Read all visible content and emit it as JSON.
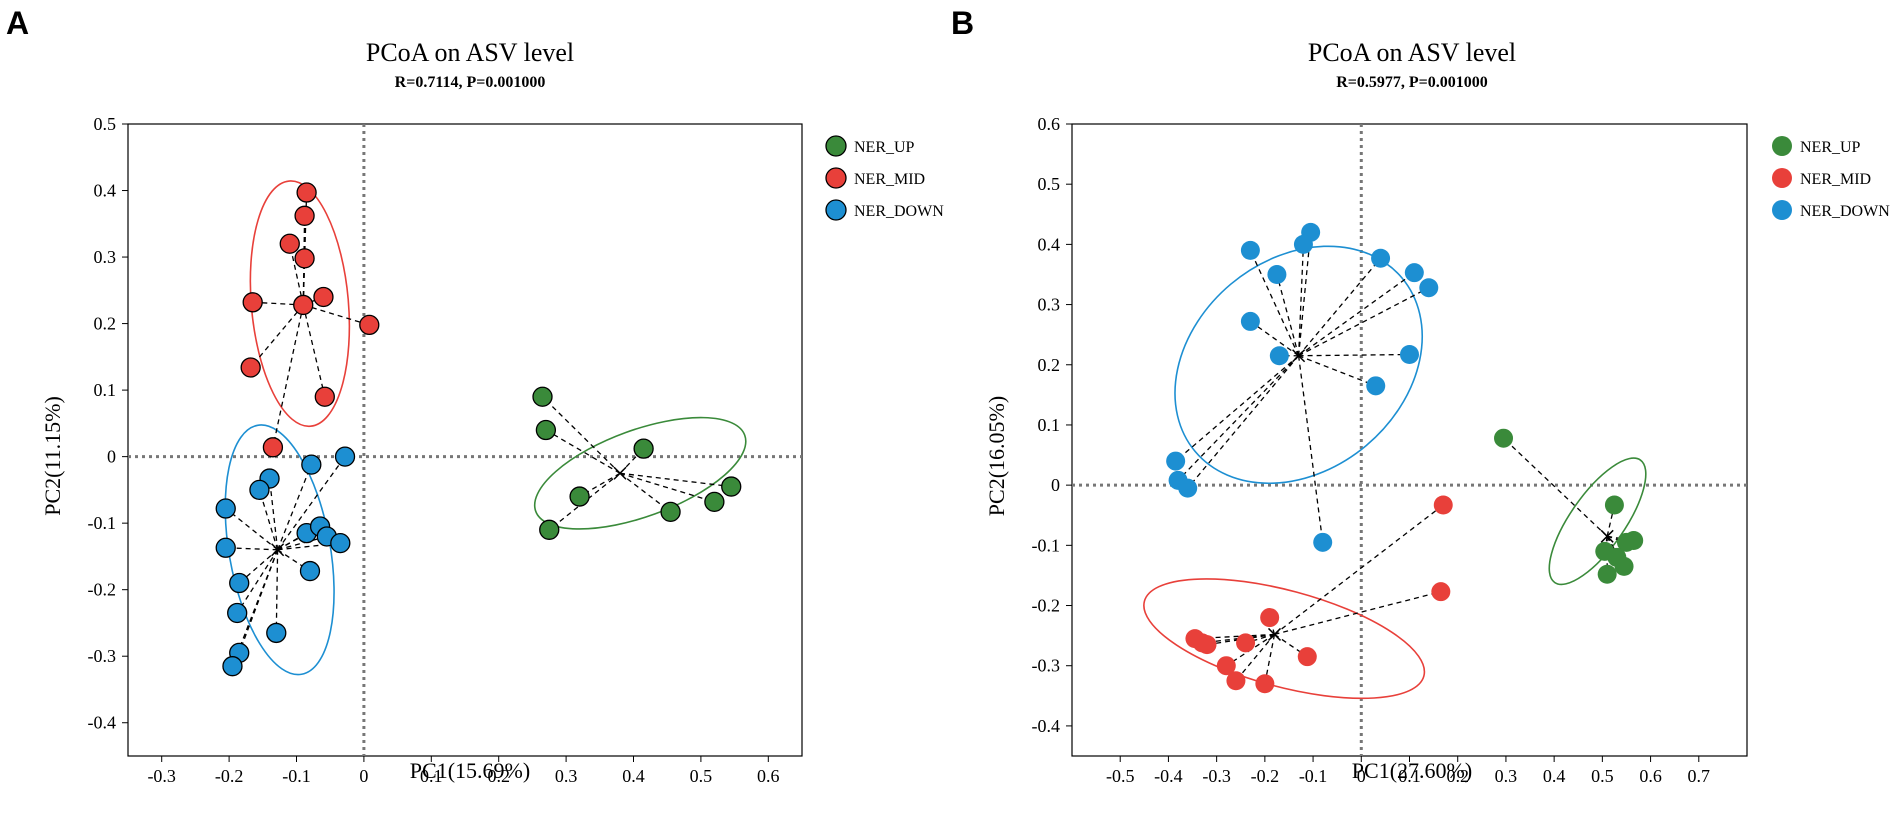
{
  "panels": [
    {
      "letter": "A",
      "chart_data": {
        "type": "scatter",
        "title": "PCoA on ASV level",
        "subtitle": "R=0.7114, P=0.001000",
        "xlabel": "PC1(15.69%)",
        "ylabel": "PC2(11.15%)",
        "xlim": [
          -0.35,
          0.65
        ],
        "ylim": [
          -0.45,
          0.5
        ],
        "xticks": [
          -0.3,
          -0.2,
          -0.1,
          0,
          0.1,
          0.2,
          0.3,
          0.4,
          0.5,
          0.6
        ],
        "xtick_labels": [
          "-0.3",
          "-0.2",
          "-0.1",
          "0",
          "0.1",
          "0.2",
          "0.3",
          "0.4",
          "0.5",
          "0.6"
        ],
        "yticks": [
          -0.4,
          -0.3,
          -0.2,
          -0.1,
          0,
          0.1,
          0.2,
          0.3,
          0.4,
          0.5
        ],
        "ytick_labels": [
          "-0.4",
          "-0.3",
          "-0.2",
          "-0.1",
          "0",
          "0.1",
          "0.2",
          "0.3",
          "0.4",
          "0.5"
        ],
        "point_outline": true,
        "legend_position": "outside-right-top",
        "series": [
          {
            "name": "NER_UP",
            "color": "#3a8a3a",
            "centroid": [
              0.38,
              -0.025
            ],
            "ellipse": {
              "cx": 0.41,
              "cy": -0.025,
              "rx": 0.165,
              "ry": 0.065,
              "angle_deg": -20
            },
            "points": [
              [
                0.265,
                0.09
              ],
              [
                0.27,
                0.04
              ],
              [
                0.275,
                -0.11
              ],
              [
                0.32,
                -0.06
              ],
              [
                0.415,
                0.012
              ],
              [
                0.455,
                -0.083
              ],
              [
                0.52,
                -0.068
              ],
              [
                0.545,
                -0.045
              ]
            ]
          },
          {
            "name": "NER_MID",
            "color": "#e8403a",
            "centroid": [
              -0.09,
              0.228
            ],
            "ellipse": {
              "cx": -0.095,
              "cy": 0.23,
              "rx": 0.072,
              "ry": 0.185,
              "angle_deg": -5
            },
            "points": [
              [
                -0.085,
                0.397
              ],
              [
                -0.088,
                0.362
              ],
              [
                -0.11,
                0.32
              ],
              [
                -0.088,
                0.298
              ],
              [
                -0.165,
                0.232
              ],
              [
                -0.09,
                0.228
              ],
              [
                -0.06,
                0.24
              ],
              [
                0.008,
                0.198
              ],
              [
                -0.168,
                0.134
              ],
              [
                -0.058,
                0.09
              ],
              [
                -0.135,
                0.014
              ]
            ]
          },
          {
            "name": "NER_DOWN",
            "color": "#1d8fd2",
            "centroid": [
              -0.128,
              -0.14
            ],
            "ellipse": {
              "cx": -0.125,
              "cy": -0.14,
              "rx": 0.075,
              "ry": 0.19,
              "angle_deg": -10
            },
            "points": [
              [
                -0.028,
                0.0
              ],
              [
                -0.078,
                -0.012
              ],
              [
                -0.14,
                -0.033
              ],
              [
                -0.155,
                -0.05
              ],
              [
                -0.205,
                -0.078
              ],
              [
                -0.085,
                -0.115
              ],
              [
                -0.065,
                -0.105
              ],
              [
                -0.055,
                -0.12
              ],
              [
                -0.035,
                -0.13
              ],
              [
                -0.205,
                -0.137
              ],
              [
                -0.08,
                -0.172
              ],
              [
                -0.185,
                -0.19
              ],
              [
                -0.188,
                -0.235
              ],
              [
                -0.13,
                -0.265
              ],
              [
                -0.185,
                -0.295
              ],
              [
                -0.195,
                -0.315
              ]
            ]
          }
        ]
      }
    },
    {
      "letter": "B",
      "chart_data": {
        "type": "scatter",
        "title": "PCoA on ASV level",
        "subtitle": "R=0.5977, P=0.001000",
        "xlabel": "PC1(27.60%)",
        "ylabel": "PC2(16.05%)",
        "xlim": [
          -0.6,
          0.8
        ],
        "ylim": [
          -0.45,
          0.6
        ],
        "xticks": [
          -0.5,
          -0.4,
          -0.3,
          -0.2,
          -0.1,
          0,
          0.1,
          0.2,
          0.3,
          0.4,
          0.5,
          0.6,
          0.7
        ],
        "xtick_labels": [
          "-0.5",
          "-0.4",
          "-0.3",
          "-0.2",
          "-0.1",
          "0",
          "0.1",
          "0.2",
          "0.3",
          "0.4",
          "0.5",
          "0.6",
          "0.7"
        ],
        "yticks": [
          -0.4,
          -0.3,
          -0.2,
          -0.1,
          0,
          0.1,
          0.2,
          0.3,
          0.4,
          0.5,
          0.6
        ],
        "ytick_labels": [
          "-0.4",
          "-0.3",
          "-0.2",
          "-0.1",
          "0",
          "0.1",
          "0.2",
          "0.3",
          "0.4",
          "0.5",
          "0.6"
        ],
        "point_outline": false,
        "legend_position": "outside-right-top",
        "series": [
          {
            "name": "NER_UP",
            "color": "#3a8a3a",
            "centroid": [
              0.51,
              -0.085
            ],
            "ellipse": {
              "cx": 0.49,
              "cy": -0.06,
              "rx": 0.155,
              "ry": 0.045,
              "angle_deg": -55
            },
            "points": [
              [
                0.295,
                0.078
              ],
              [
                0.525,
                -0.033
              ],
              [
                0.55,
                -0.095
              ],
              [
                0.565,
                -0.092
              ],
              [
                0.505,
                -0.11
              ],
              [
                0.53,
                -0.12
              ],
              [
                0.545,
                -0.135
              ],
              [
                0.51,
                -0.148
              ]
            ]
          },
          {
            "name": "NER_MID",
            "color": "#e8403a",
            "centroid": [
              -0.18,
              -0.248
            ],
            "ellipse": {
              "cx": -0.16,
              "cy": -0.255,
              "rx": 0.3,
              "ry": 0.08,
              "angle_deg": 15
            },
            "points": [
              [
                0.17,
                -0.033
              ],
              [
                0.165,
                -0.177
              ],
              [
                -0.19,
                -0.22
              ],
              [
                -0.24,
                -0.262
              ],
              [
                -0.345,
                -0.255
              ],
              [
                -0.33,
                -0.262
              ],
              [
                -0.32,
                -0.265
              ],
              [
                -0.112,
                -0.285
              ],
              [
                -0.28,
                -0.3
              ],
              [
                -0.26,
                -0.325
              ],
              [
                -0.2,
                -0.33
              ]
            ]
          },
          {
            "name": "NER_DOWN",
            "color": "#1d8fd2",
            "centroid": [
              -0.13,
              0.215
            ],
            "ellipse": {
              "cx": -0.13,
              "cy": 0.2,
              "rx": 0.28,
              "ry": 0.175,
              "angle_deg": -40
            },
            "points": [
              [
                -0.105,
                0.42
              ],
              [
                -0.12,
                0.4
              ],
              [
                -0.23,
                0.39
              ],
              [
                0.04,
                0.377
              ],
              [
                -0.175,
                0.35
              ],
              [
                0.11,
                0.353
              ],
              [
                0.14,
                0.328
              ],
              [
                -0.23,
                0.272
              ],
              [
                -0.17,
                0.215
              ],
              [
                0.1,
                0.217
              ],
              [
                0.03,
                0.165
              ],
              [
                -0.385,
                0.04
              ],
              [
                -0.38,
                0.008
              ],
              [
                -0.36,
                -0.005
              ],
              [
                -0.08,
                -0.095
              ]
            ]
          }
        ]
      }
    }
  ]
}
